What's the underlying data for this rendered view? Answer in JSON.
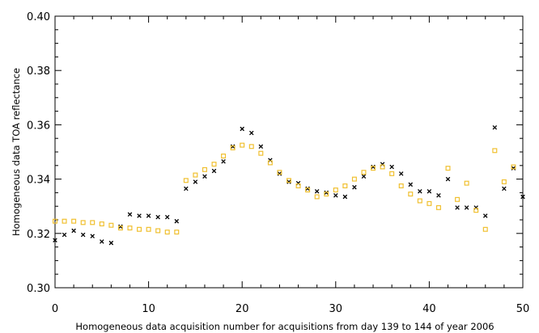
{
  "chart_data": {
    "type": "scatter",
    "title": "",
    "xlabel": "Homogeneous data acquisition number for acquisitions from day 139 to 144 of year 2006",
    "ylabel": "Homogeneous data TOA reflectance",
    "xlim": [
      0,
      50
    ],
    "ylim": [
      0.3,
      0.4
    ],
    "x_ticks": [
      0,
      10,
      20,
      30,
      40,
      50
    ],
    "x_tick_labels": [
      "0",
      "10",
      "20",
      "30",
      "40",
      "50"
    ],
    "y_ticks": [
      0.3,
      0.32,
      0.34,
      0.36,
      0.38,
      0.4
    ],
    "y_tick_labels": [
      "0.30",
      "0.32",
      "0.34",
      "0.36",
      "0.38",
      "0.40"
    ],
    "grid": false,
    "legend": "none",
    "series": [
      {
        "marker": "x",
        "color": "#000000",
        "x": [
          0,
          1,
          2,
          3,
          4,
          5,
          6,
          7,
          8,
          9,
          10,
          11,
          12,
          13,
          14,
          15,
          16,
          17,
          18,
          19,
          20,
          21,
          22,
          23,
          24,
          25,
          26,
          27,
          28,
          29,
          30,
          31,
          32,
          33,
          34,
          35,
          36,
          37,
          38,
          39,
          40,
          41,
          42,
          43,
          44,
          45,
          46,
          47,
          48,
          49,
          50
        ],
        "y": [
          0.3175,
          0.3195,
          0.321,
          0.3195,
          0.319,
          0.317,
          0.3165,
          0.3225,
          0.327,
          0.3265,
          0.3265,
          0.326,
          0.326,
          0.3245,
          0.3365,
          0.339,
          0.341,
          0.343,
          0.3465,
          0.352,
          0.3585,
          0.357,
          0.352,
          0.347,
          0.342,
          0.339,
          0.3385,
          0.3365,
          0.3355,
          0.335,
          0.334,
          0.3335,
          0.337,
          0.341,
          0.3445,
          0.3455,
          0.3445,
          0.342,
          0.338,
          0.3355,
          0.3355,
          0.334,
          0.34,
          0.3295,
          0.3295,
          0.3295,
          0.3265,
          0.359,
          0.3365,
          0.344,
          0.3335
        ]
      },
      {
        "marker": "square",
        "color": "#f0c030",
        "x": [
          0,
          1,
          2,
          3,
          4,
          5,
          6,
          7,
          8,
          9,
          10,
          11,
          12,
          13,
          14,
          15,
          16,
          17,
          18,
          19,
          20,
          21,
          22,
          23,
          24,
          25,
          26,
          27,
          28,
          29,
          30,
          31,
          32,
          33,
          34,
          35,
          36,
          37,
          38,
          39,
          40,
          41,
          42,
          43,
          44,
          45,
          46,
          47,
          48,
          49
        ],
        "y": [
          0.3245,
          0.3245,
          0.3245,
          0.324,
          0.324,
          0.3235,
          0.323,
          0.322,
          0.322,
          0.3215,
          0.3215,
          0.321,
          0.3205,
          0.3205,
          0.3395,
          0.3415,
          0.3435,
          0.3455,
          0.3485,
          0.3515,
          0.3525,
          0.352,
          0.3495,
          0.346,
          0.3425,
          0.3395,
          0.3375,
          0.336,
          0.3335,
          0.3345,
          0.336,
          0.3375,
          0.34,
          0.3425,
          0.344,
          0.3445,
          0.342,
          0.3375,
          0.3345,
          0.332,
          0.331,
          0.3295,
          0.344,
          0.3325,
          0.3385,
          0.3285,
          0.3215,
          0.3505,
          0.339,
          0.3445
        ]
      }
    ]
  }
}
